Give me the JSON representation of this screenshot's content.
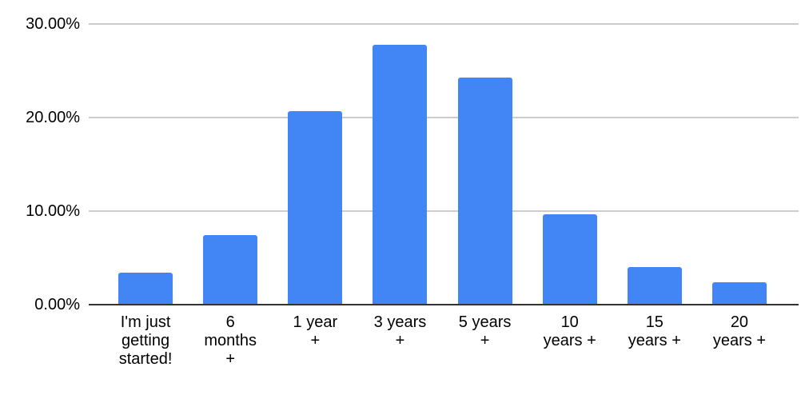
{
  "chart_data": {
    "type": "bar",
    "title": "",
    "xlabel": "",
    "ylabel": "",
    "categories": [
      "I'm just getting started!",
      "6 months +",
      "1 year +",
      "3 years +",
      "5 years +",
      "10 years +",
      "15 years +",
      "20 years +"
    ],
    "category_labels_wrapped": [
      "I'm just\ngetting\nstarted!",
      "6\nmonths\n+",
      "1 year\n+",
      "3 years\n+",
      "5 years\n+",
      "10\nyears +",
      "15\nyears +",
      "20\nyears +"
    ],
    "values": [
      3.4,
      7.4,
      20.7,
      27.8,
      24.3,
      9.7,
      4.0,
      2.4
    ],
    "unit": "%",
    "ylim": [
      0,
      30
    ],
    "yticks": [
      0,
      10,
      20,
      30
    ],
    "ytick_labels": [
      "0.00%",
      "10.00%",
      "20.00%",
      "30.00%"
    ],
    "grid": true,
    "legend": "none",
    "colors": {
      "bar": "#4285F4",
      "gridline": "#cccccc",
      "axis_line": "#333333",
      "text": "#000000",
      "background": "#ffffff"
    }
  }
}
